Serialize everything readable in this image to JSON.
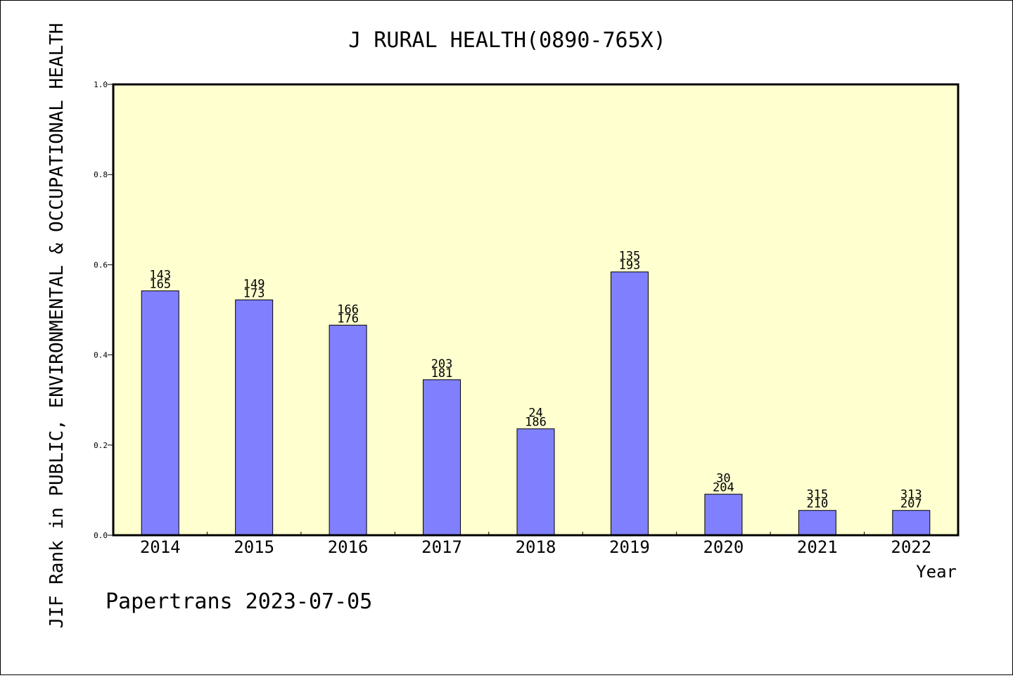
{
  "chart_data": {
    "type": "bar",
    "title": "J RURAL HEALTH(0890-765X)",
    "xlabel": "Year",
    "ylabel": "JIF Rank in PUBLIC, ENVIRONMENTAL & OCCUPATIONAL HEALTH",
    "ylim": [
      0,
      1.0
    ],
    "yticks": [
      "0.0",
      "0.2",
      "0.4",
      "0.6",
      "0.8",
      "1.0"
    ],
    "categories": [
      "2014",
      "2015",
      "2016",
      "2017",
      "2018",
      "2019",
      "2020",
      "2021",
      "2022"
    ],
    "values": [
      0.542,
      0.522,
      0.466,
      0.345,
      0.236,
      0.584,
      0.091,
      0.055,
      0.055
    ],
    "labels": [
      [
        "143",
        "165"
      ],
      [
        "149",
        "173"
      ],
      [
        "166",
        "176"
      ],
      [
        "203",
        "181"
      ],
      [
        "24",
        "186"
      ],
      [
        "135",
        "193"
      ],
      [
        "30",
        "204"
      ],
      [
        "315",
        "210"
      ],
      [
        "313",
        "207"
      ]
    ],
    "grid": false,
    "colors": {
      "bar": "#8080ff",
      "plot_bg": "#ffffd0",
      "bar_edge": "#000000"
    }
  },
  "footer": "Papertrans 2023-07-05"
}
